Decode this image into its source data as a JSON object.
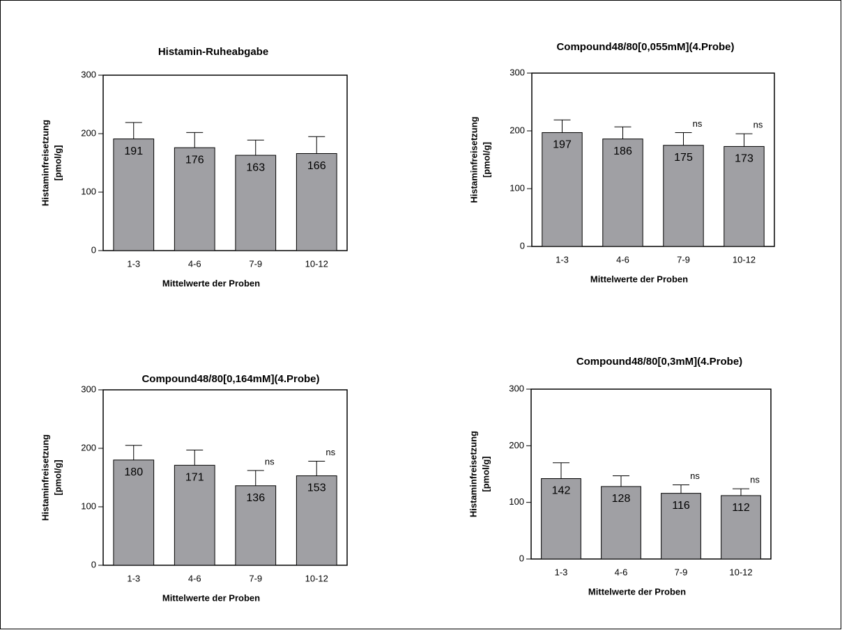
{
  "chart_data": [
    {
      "type": "bar",
      "title": "Histamin-Ruheabgabe",
      "xlabel": "Mittelwerte der Proben",
      "ylabel": [
        "Histaminfreisetzung",
        "[pmol/g]"
      ],
      "categories": [
        "1-3",
        "4-6",
        "7-9",
        "10-12"
      ],
      "values": [
        191,
        176,
        163,
        166
      ],
      "errors": [
        28,
        26,
        26,
        29
      ],
      "value_annotations": [
        null,
        null,
        null,
        null
      ],
      "color": "#a0a0a4",
      "ylim": [
        0,
        300
      ],
      "yticks": [
        0,
        100,
        200,
        300
      ]
    },
    {
      "type": "bar",
      "title": "Compound48/80[0,055mM](4.Probe)",
      "xlabel": "Mittelwerte der Proben",
      "ylabel": [
        "Histaminfreisetzung",
        "[pmol/g]"
      ],
      "categories": [
        "1-3",
        "4-6",
        "7-9",
        "10-12"
      ],
      "values": [
        197,
        186,
        175,
        173
      ],
      "errors": [
        22,
        21,
        22,
        22
      ],
      "value_annotations": [
        null,
        null,
        "ns",
        "ns"
      ],
      "color": "#a0a0a4",
      "ylim": [
        0,
        300
      ],
      "yticks": [
        0,
        100,
        200,
        300
      ]
    },
    {
      "type": "bar",
      "title": "Compound48/80[0,164mM](4.Probe)",
      "xlabel": "Mittelwerte der Proben",
      "ylabel": [
        "Histaminfreisetzung",
        "[pmol/g]"
      ],
      "categories": [
        "1-3",
        "4-6",
        "7-9",
        "10-12"
      ],
      "values": [
        180,
        171,
        136,
        153
      ],
      "errors": [
        25,
        26,
        26,
        25
      ],
      "value_annotations": [
        null,
        null,
        "ns",
        "ns"
      ],
      "color": "#a0a0a4",
      "ylim": [
        0,
        300
      ],
      "yticks": [
        0,
        100,
        200,
        300
      ]
    },
    {
      "type": "bar",
      "title": "Compound48/80[0,3mM](4.Probe)",
      "xlabel": "Mittelwerte der Proben",
      "ylabel": [
        "Histaminfreisetzung",
        "[pmol/g]"
      ],
      "categories": [
        "1-3",
        "4-6",
        "7-9",
        "10-12"
      ],
      "values": [
        142,
        128,
        116,
        112
      ],
      "errors": [
        28,
        19,
        15,
        12
      ],
      "value_annotations": [
        null,
        null,
        "ns",
        "ns"
      ],
      "color": "#a0a0a4",
      "ylim": [
        0,
        300
      ],
      "yticks": [
        0,
        100,
        200,
        300
      ]
    }
  ]
}
